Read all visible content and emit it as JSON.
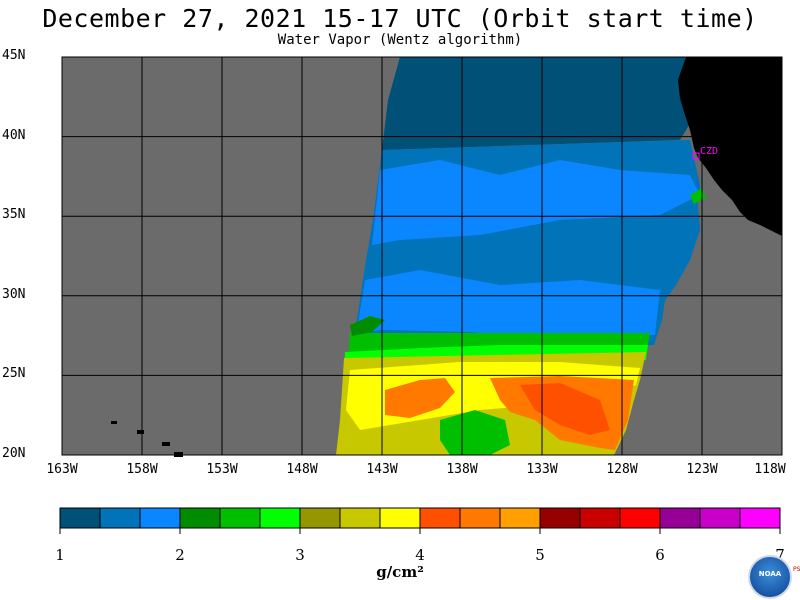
{
  "header": {
    "title": "December 27, 2021  15-17 UTC  (Orbit start time)",
    "subtitle": "Water Vapor (Wentz algorithm)"
  },
  "map": {
    "lat_labels": [
      "45N",
      "40N",
      "35N",
      "30N",
      "25N",
      "20N"
    ],
    "lat_values": [
      45,
      40,
      35,
      30,
      25,
      20
    ],
    "lon_labels": [
      "163W",
      "158W",
      "153W",
      "148W",
      "143W",
      "138W",
      "133W",
      "128W",
      "123W",
      "118W"
    ],
    "lon_values": [
      -163,
      -158,
      -153,
      -148,
      -143,
      -138,
      -133,
      -128,
      -123,
      -118
    ],
    "lat_range": [
      20,
      45
    ],
    "lon_range": [
      -163,
      -118
    ],
    "grid": true,
    "city_label": "CZD",
    "colors": {
      "ocean_no_data": "#6b6b6b",
      "land": "#000000",
      "grid": "#000000",
      "city": "#ff00ff"
    }
  },
  "colorbar": {
    "colors": [
      "#005078",
      "#0073b9",
      "#0a87ff",
      "#008c00",
      "#00be00",
      "#00ff00",
      "#969600",
      "#c8c800",
      "#ffff00",
      "#ff5000",
      "#ff7800",
      "#ffa000",
      "#960000",
      "#c80000",
      "#ff0000",
      "#960096",
      "#c800c8",
      "#ff00ff"
    ],
    "tick_labels": [
      "1",
      "2",
      "3",
      "4",
      "5",
      "6",
      "7"
    ],
    "tick_values": [
      1,
      2,
      3,
      4,
      5,
      6,
      7
    ],
    "range": [
      1,
      7
    ],
    "units": "g/cm²"
  },
  "logo": {
    "text": "NOAA",
    "side_text": "PSL"
  }
}
